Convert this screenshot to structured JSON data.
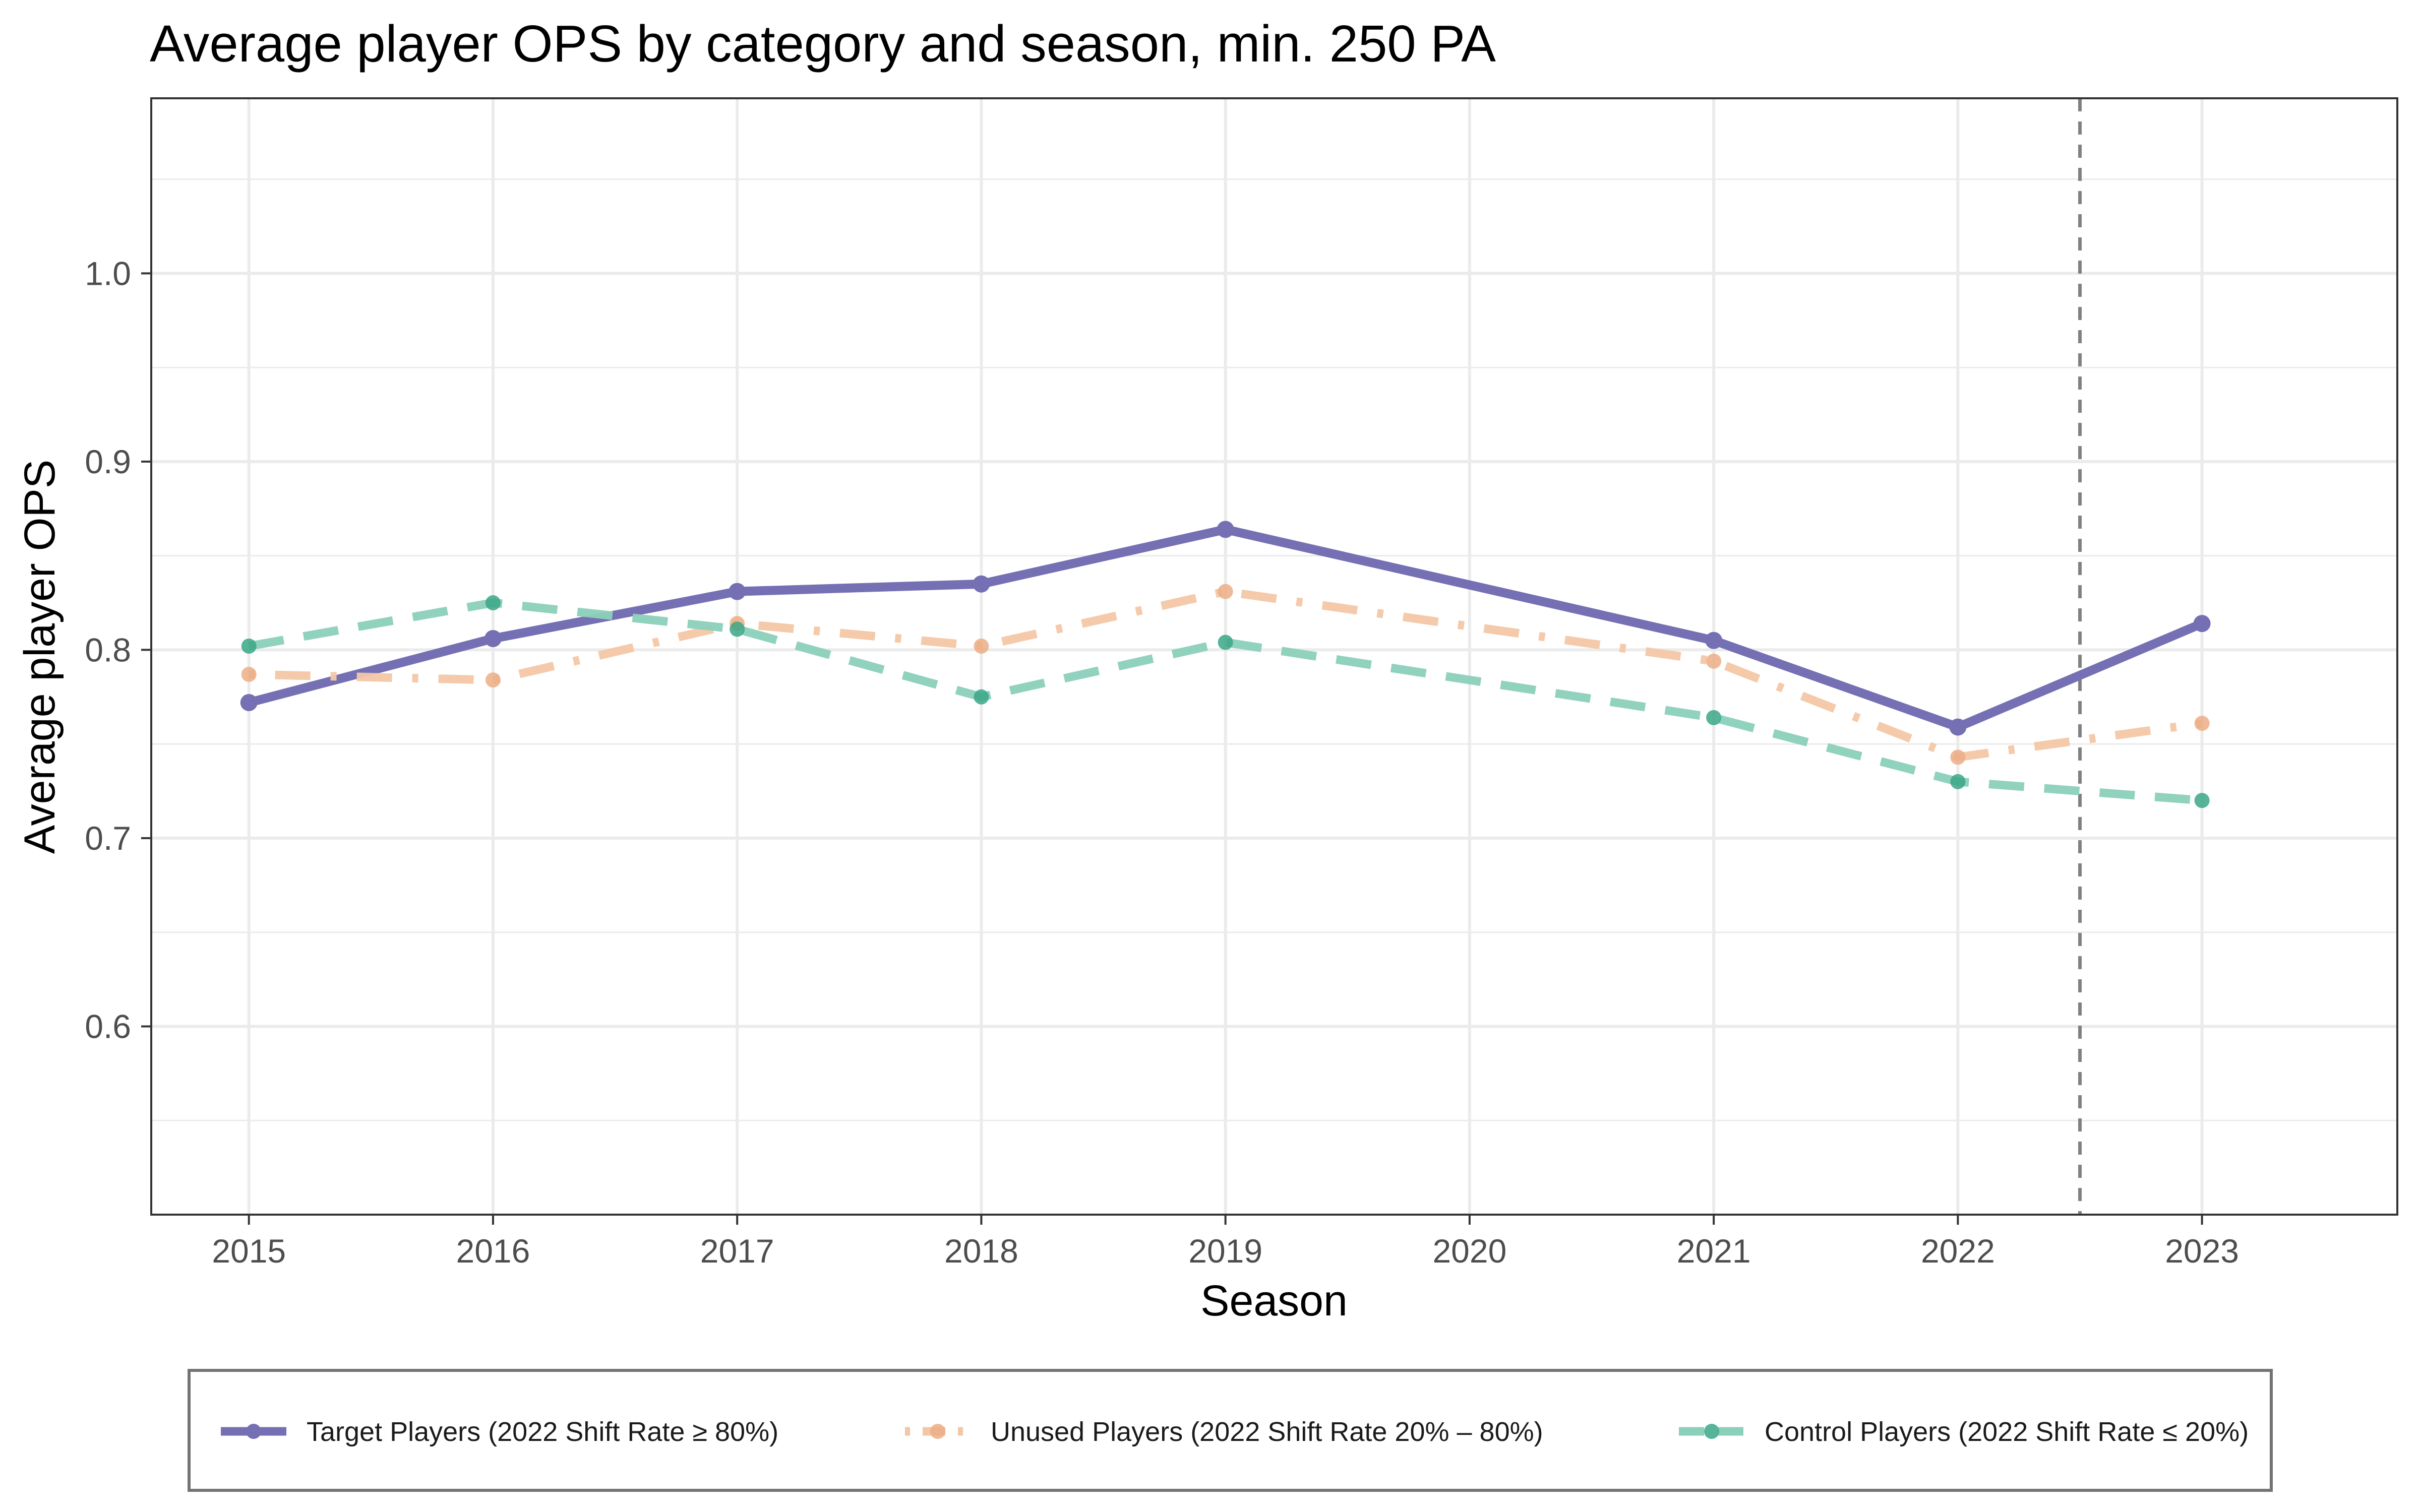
{
  "chart_data": {
    "type": "line",
    "title": "Average player OPS by category and season, min. 250 PA",
    "xlabel": "Season",
    "ylabel": "Average player OPS",
    "x": [
      2015,
      2016,
      2017,
      2018,
      2019,
      2020,
      2021,
      2022,
      2023
    ],
    "xlim": [
      2014.6,
      2023.8
    ],
    "ylim": [
      0.5,
      1.093
    ],
    "y_ticks": [
      0.6,
      0.7,
      0.8,
      0.9,
      1.0
    ],
    "y_tick_labels": [
      "0.6",
      "0.7",
      "0.8",
      "0.9",
      "1.0"
    ],
    "x_tick_labels": [
      "2015",
      "2016",
      "2017",
      "2018",
      "2019",
      "2020",
      "2021",
      "2022",
      "2023"
    ],
    "grid": true,
    "vline_x": 2022.5,
    "legend_position": "bottom",
    "series": [
      {
        "name": "Target Players (2022 Shift Rate ≥ 80%)",
        "x": [
          2015,
          2016,
          2017,
          2018,
          2019,
          2021,
          2022,
          2023
        ],
        "values": [
          0.772,
          0.806,
          0.831,
          0.835,
          0.864,
          0.805,
          0.759,
          0.814
        ],
        "color": "#7570b3",
        "style": "solid"
      },
      {
        "name": "Unused Players (2022 Shift Rate 20% – 80%)",
        "x": [
          2015,
          2016,
          2017,
          2018,
          2019,
          2021,
          2022,
          2023
        ],
        "values": [
          0.787,
          0.784,
          0.814,
          0.802,
          0.831,
          0.794,
          0.743,
          0.761
        ],
        "color": "#f3c7a6",
        "point_color": "#ebae86",
        "style": "dotdash"
      },
      {
        "name": "Control Players (2022 Shift Rate ≤ 20%)",
        "x": [
          2015,
          2016,
          2017,
          2018,
          2019,
          2021,
          2022,
          2023
        ],
        "values": [
          0.802,
          0.825,
          0.811,
          0.775,
          0.804,
          0.764,
          0.73,
          0.72
        ],
        "color": "#8bd0bb",
        "point_color": "#3aa786",
        "style": "dashed"
      }
    ]
  }
}
